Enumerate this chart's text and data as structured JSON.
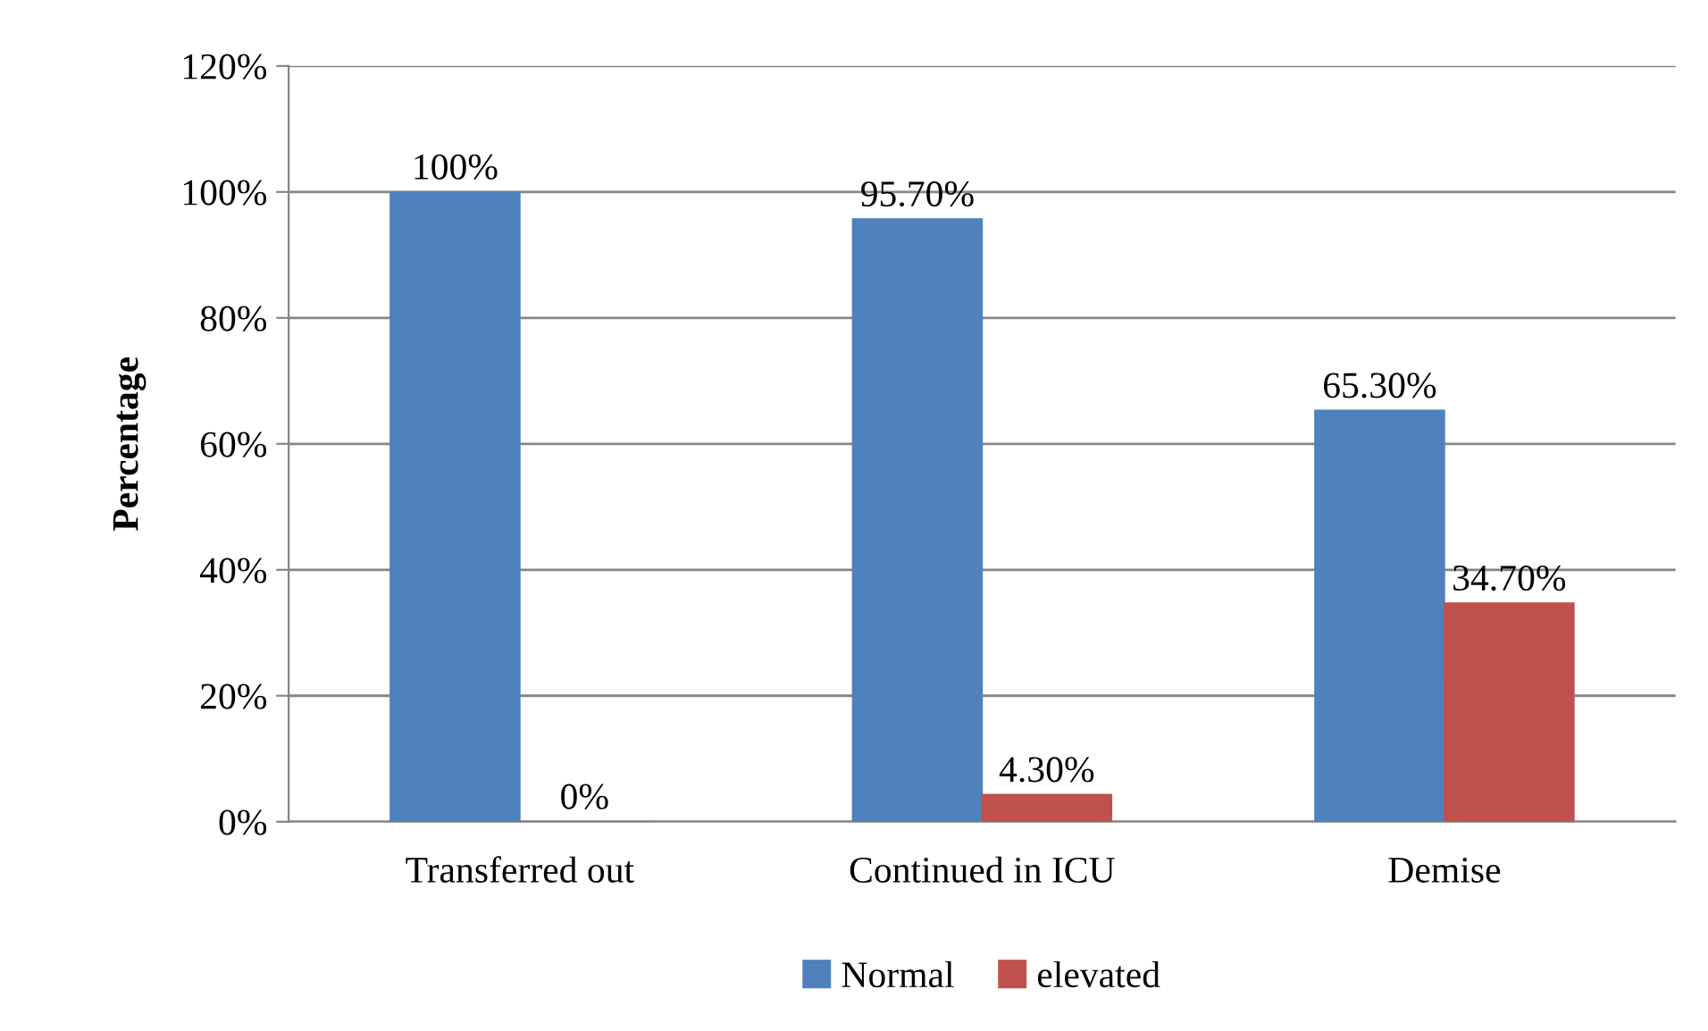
{
  "chart_data": {
    "type": "bar",
    "ylabel": "Percentage",
    "categories": [
      "Transferred out",
      "Continued in ICU",
      "Demise"
    ],
    "series": [
      {
        "name": "Normal",
        "color": "#4f81bd",
        "values": [
          100,
          95.7,
          65.3
        ],
        "value_labels": [
          "100%",
          "95.70%",
          "65.30%"
        ]
      },
      {
        "name": "elevated",
        "color": "#c0504d",
        "values": [
          0,
          4.3,
          34.7
        ],
        "value_labels": [
          "0%",
          "4.30%",
          "34.70%"
        ]
      }
    ],
    "ylim": [
      0,
      120
    ],
    "yticks": [
      {
        "value": 0,
        "label": "0%"
      },
      {
        "value": 20,
        "label": "20%"
      },
      {
        "value": 40,
        "label": "40%"
      },
      {
        "value": 60,
        "label": "60%"
      },
      {
        "value": 80,
        "label": "80%"
      },
      {
        "value": 100,
        "label": "100%"
      },
      {
        "value": 120,
        "label": "120%"
      }
    ],
    "grid": "y",
    "legend": "bottom"
  }
}
